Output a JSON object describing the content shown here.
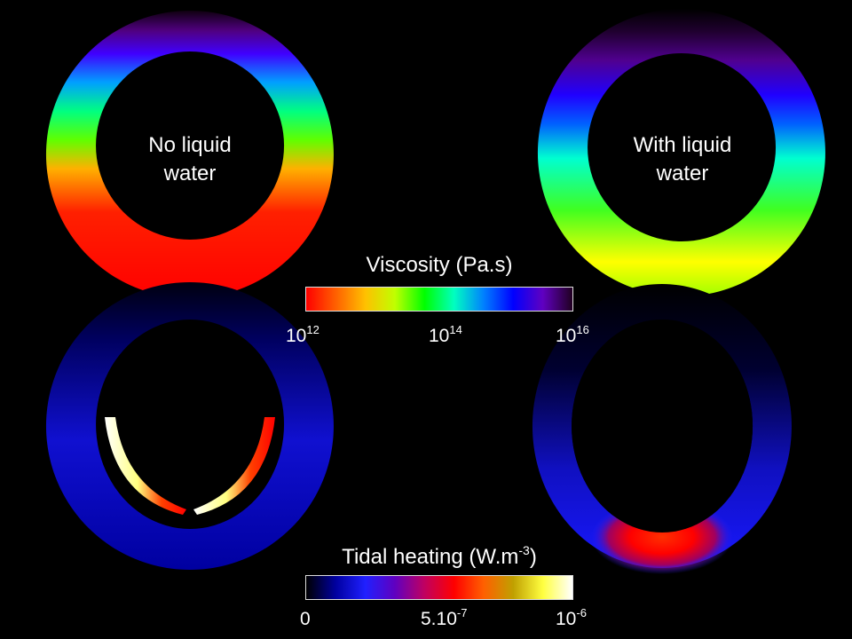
{
  "rings": {
    "top_left": {
      "line1": "No liquid",
      "line2": "water"
    },
    "top_right": {
      "line1": "With liquid",
      "line2": "water"
    }
  },
  "viscosity_scale": {
    "title": "Viscosity (Pa.s)",
    "ticks": [
      {
        "base": "10",
        "exp": "12"
      },
      {
        "base": "10",
        "exp": "14"
      },
      {
        "base": "10",
        "exp": "16"
      }
    ],
    "colors": [
      "#ff0000",
      "#ff6000",
      "#ffc000",
      "#c0ff00",
      "#00ff00",
      "#00ffc0",
      "#0080ff",
      "#0000ff",
      "#6000c0",
      "#200020"
    ]
  },
  "heating_scale": {
    "title_main": "Tidal heating (W.m",
    "title_exp": "-3",
    "title_end": ")",
    "ticks": [
      {
        "base": "0",
        "exp": ""
      },
      {
        "base": "5.10",
        "exp": "-7"
      },
      {
        "base": "10",
        "exp": "-6"
      }
    ],
    "colors": [
      "#000000",
      "#0000a0",
      "#2020ff",
      "#6000c0",
      "#c00060",
      "#ff0000",
      "#ff6000",
      "#c0a000",
      "#ffff40",
      "#ffffff"
    ]
  }
}
